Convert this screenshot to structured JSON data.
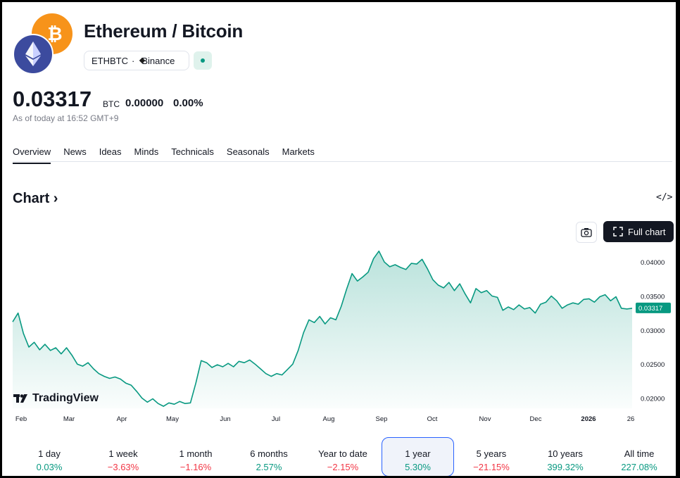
{
  "header": {
    "title": "Ethereum / Bitcoin",
    "symbol": "ETHBTC",
    "separator": "·",
    "exchange": "Binance",
    "base_logo": "ethereum-logo",
    "quote_logo": "bitcoin-logo"
  },
  "quote": {
    "price": "0.03317",
    "unit": "BTC",
    "change_abs": "0.00000",
    "change_pct": "0.00%",
    "as_of": "As of today at 16:52 GMT+9"
  },
  "tabs": [
    {
      "label": "Overview",
      "active": true
    },
    {
      "label": "News"
    },
    {
      "label": "Ideas"
    },
    {
      "label": "Minds"
    },
    {
      "label": "Technicals"
    },
    {
      "label": "Seasonals"
    },
    {
      "label": "Markets"
    }
  ],
  "chart_section": {
    "title": "Chart",
    "full_chart_label": "Full chart",
    "tv_brand": "TradingView"
  },
  "colors": {
    "line": "#089981",
    "positive": "#089981",
    "negative": "#f23645",
    "active_range_border": "#2962ff"
  },
  "chart_data": {
    "type": "area",
    "x_ticks": [
      "Feb",
      "Mar",
      "Apr",
      "May",
      "Jun",
      "Jul",
      "Aug",
      "Sep",
      "Oct",
      "Nov",
      "Dec",
      "2026",
      "26"
    ],
    "y_ticks": [
      "0.04000",
      "0.03500",
      "0.03000",
      "0.02500",
      "0.02000"
    ],
    "ylim": [
      0.0185,
      0.0425
    ],
    "last_value_label": "0.03317",
    "values": [
      0.0312,
      0.0325,
      0.0295,
      0.0275,
      0.0282,
      0.0271,
      0.0279,
      0.027,
      0.0274,
      0.0265,
      0.0274,
      0.0263,
      0.025,
      0.0247,
      0.0252,
      0.0243,
      0.0236,
      0.0232,
      0.0229,
      0.0231,
      0.0228,
      0.0222,
      0.0219,
      0.021,
      0.02,
      0.0194,
      0.0199,
      0.0192,
      0.0188,
      0.0193,
      0.0191,
      0.0195,
      0.0192,
      0.0193,
      0.0222,
      0.0255,
      0.0252,
      0.0245,
      0.0249,
      0.0246,
      0.0251,
      0.0246,
      0.0254,
      0.0252,
      0.0256,
      0.025,
      0.0243,
      0.0236,
      0.0232,
      0.0236,
      0.0234,
      0.0242,
      0.025,
      0.027,
      0.0296,
      0.0315,
      0.0311,
      0.032,
      0.0309,
      0.0318,
      0.0315,
      0.0335,
      0.036,
      0.0383,
      0.0372,
      0.0378,
      0.0385,
      0.0405,
      0.0416,
      0.04,
      0.0393,
      0.0396,
      0.0392,
      0.0389,
      0.0398,
      0.0397,
      0.0404,
      0.039,
      0.0374,
      0.0366,
      0.0362,
      0.037,
      0.0358,
      0.0368,
      0.0353,
      0.034,
      0.0361,
      0.0355,
      0.0358,
      0.035,
      0.0348,
      0.0329,
      0.0334,
      0.033,
      0.0337,
      0.0331,
      0.0333,
      0.0325,
      0.0338,
      0.0341,
      0.035,
      0.0343,
      0.0332,
      0.0337,
      0.034,
      0.0338,
      0.0345,
      0.0346,
      0.0341,
      0.0349,
      0.0352,
      0.0343,
      0.0349,
      0.0332,
      0.0331,
      0.0332
    ]
  },
  "ranges": [
    {
      "label": "1 day",
      "value": "0.03%",
      "dir": "pos"
    },
    {
      "label": "1 week",
      "value": "−3.63%",
      "dir": "neg"
    },
    {
      "label": "1 month",
      "value": "−1.16%",
      "dir": "neg"
    },
    {
      "label": "6 months",
      "value": "2.57%",
      "dir": "pos"
    },
    {
      "label": "Year to date",
      "value": "−2.15%",
      "dir": "neg"
    },
    {
      "label": "1 year",
      "value": "5.30%",
      "dir": "pos",
      "active": true
    },
    {
      "label": "5 years",
      "value": "−21.15%",
      "dir": "neg"
    },
    {
      "label": "10 years",
      "value": "399.32%",
      "dir": "pos"
    },
    {
      "label": "All time",
      "value": "227.08%",
      "dir": "pos"
    }
  ]
}
